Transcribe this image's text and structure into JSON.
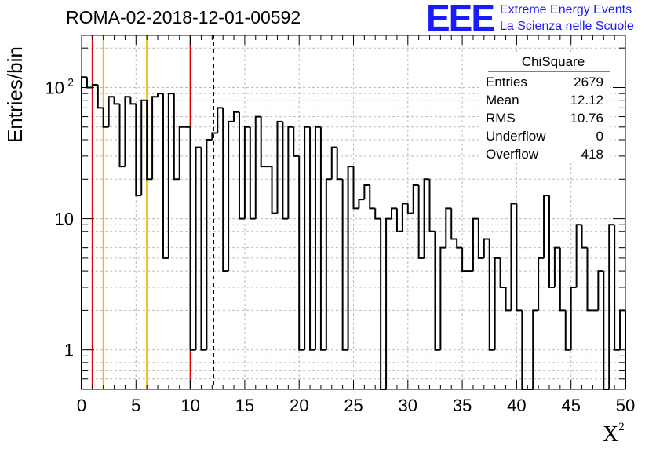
{
  "header": {
    "title": "ROMA-02-2018-12-01-00592",
    "logo_text": "EEE",
    "org_line1": "Extreme Energy Events",
    "org_line2": "La Scienza nelle Scuole"
  },
  "colors": {
    "logo": "#1a1aff",
    "red_line": "#e00000",
    "yellow_line": "#f0c000",
    "grid": "#bbbbbb",
    "histogram": "#000000"
  },
  "chart_data": {
    "type": "bar",
    "histogram_style": "step",
    "title": "ROMA-02-2018-12-01-00592",
    "xlabel": "X",
    "xlabel_superscript": "2",
    "ylabel": "Entries/bin",
    "xlim": [
      0,
      50
    ],
    "ylim": [
      0.5,
      250
    ],
    "yscale": "log",
    "grid": true,
    "x_ticks": [
      0,
      5,
      10,
      15,
      20,
      25,
      30,
      35,
      40,
      45,
      50
    ],
    "y_tick_labels": [
      {
        "value": 1,
        "label": "1"
      },
      {
        "value": 10,
        "label": "10"
      },
      {
        "value": 100,
        "label": "10",
        "exponent": "2"
      }
    ],
    "bin_width": 0.5,
    "bin_start": 0,
    "values": [
      120,
      100,
      105,
      70,
      50,
      85,
      75,
      25,
      85,
      75,
      15,
      80,
      20,
      85,
      90,
      5,
      90,
      20,
      50,
      50,
      1,
      35,
      1,
      40,
      45,
      70,
      4,
      55,
      65,
      10,
      50,
      10,
      60,
      25,
      25,
      11,
      55,
      10,
      50,
      30,
      1,
      50,
      1,
      50,
      1,
      20,
      35,
      20,
      1,
      25,
      12,
      14,
      18,
      12,
      10,
      0,
      10,
      12,
      8,
      13,
      11,
      18,
      5,
      20,
      8,
      1,
      6,
      12,
      7,
      6,
      4,
      4,
      10,
      5,
      7,
      1,
      5,
      3,
      2,
      13,
      2,
      0,
      0,
      2,
      5,
      15,
      3,
      6,
      2,
      1,
      3,
      9,
      6,
      2,
      2,
      4,
      0,
      9,
      1,
      2
    ],
    "vertical_lines": [
      {
        "x": 1,
        "color": "red",
        "style": "solid"
      },
      {
        "x": 2,
        "color": "yellow",
        "style": "solid"
      },
      {
        "x": 6,
        "color": "yellow",
        "style": "solid"
      },
      {
        "x": 10,
        "color": "red",
        "style": "solid"
      },
      {
        "x": 12.12,
        "color": "black",
        "style": "dashed"
      }
    ],
    "stats_box": {
      "title": "ChiSquare",
      "rows": [
        {
          "label": "Entries",
          "value": "2679"
        },
        {
          "label": "Mean",
          "value": "12.12"
        },
        {
          "label": "RMS",
          "value": "10.76"
        },
        {
          "label": "Underflow",
          "value": "0"
        },
        {
          "label": "Overflow",
          "value": "418"
        }
      ]
    }
  }
}
